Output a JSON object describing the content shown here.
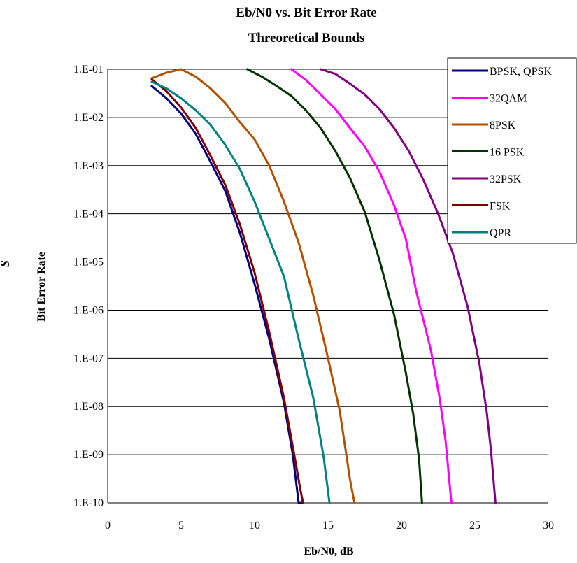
{
  "chart_data": {
    "type": "line",
    "title": "Eb/N0 vs. Bit Error Rate",
    "subtitle": "Threoretical Bounds",
    "xlabel": "Eb/N0, dB",
    "ylabel": "Bit Error Rate",
    "stray_glyph": "S",
    "xlim": [
      0,
      30
    ],
    "ylim": [
      1e-10,
      0.1
    ],
    "y_scale": "log",
    "x_ticks": [
      "0",
      "5",
      "10",
      "15",
      "20",
      "25",
      "30"
    ],
    "y_ticks": [
      "1.E-01",
      "1.E-02",
      "1.E-03",
      "1.E-04",
      "1.E-05",
      "1.E-06",
      "1.E-07",
      "1.E-08",
      "1.E-09",
      "1.E-10"
    ],
    "grid": "horizontal",
    "legend_position": "top-right",
    "series": [
      {
        "name": "BPSK, QPSK",
        "color": "#000080",
        "x": [
          3,
          4,
          5,
          6,
          7,
          8,
          9,
          10,
          11,
          12,
          12.6,
          13.0,
          13.2
        ],
        "y": [
          0.045,
          0.025,
          0.012,
          0.0045,
          0.0012,
          0.0003,
          4e-05,
          3.5e-06,
          2.5e-07,
          1.2e-08,
          1e-09,
          1e-10,
          1e-10
        ]
      },
      {
        "name": "32QAM",
        "color": "#FF00FF",
        "x": [
          12.5,
          13.5,
          14.5,
          15.5,
          16.5,
          17.5,
          18.5,
          19.5,
          20.3,
          21,
          22,
          22.6,
          23,
          23.4,
          23.5
        ],
        "y": [
          0.1,
          0.06,
          0.03,
          0.015,
          0.006,
          0.0025,
          0.00075,
          0.00015,
          3e-05,
          2.5e-06,
          1.5e-07,
          1.5e-08,
          2e-09,
          1e-10,
          1e-10
        ]
      },
      {
        "name": "8PSK",
        "color": "#B35000",
        "x": [
          3,
          4,
          5,
          6,
          7,
          8,
          9,
          10,
          11,
          12,
          13,
          14,
          15,
          15.8,
          16.5,
          16.8
        ],
        "y": [
          0.065,
          0.085,
          0.1,
          0.07,
          0.04,
          0.02,
          0.008,
          0.0035,
          0.001,
          0.00018,
          2.5e-05,
          2e-06,
          1e-07,
          8e-09,
          3e-10,
          1e-10
        ]
      },
      {
        "name": "16 PSK",
        "color": "#003300",
        "x": [
          9.5,
          10.5,
          11.5,
          12.5,
          13.5,
          14.5,
          15.5,
          16.5,
          17.5,
          18.5,
          19.5,
          20.3,
          20.8,
          21.2,
          21.4
        ],
        "y": [
          0.1,
          0.07,
          0.045,
          0.028,
          0.014,
          0.006,
          0.002,
          0.00055,
          0.00011,
          1.1e-05,
          8e-07,
          5e-08,
          7e-09,
          8e-10,
          1e-10
        ]
      },
      {
        "name": "32PSK",
        "color": "#800080",
        "x": [
          14.5,
          15.5,
          16.5,
          17.5,
          18.5,
          19.5,
          20.5,
          21.5,
          22.5,
          23.5,
          24.5,
          25.3,
          25.8,
          26.1,
          26.4
        ],
        "y": [
          0.1,
          0.08,
          0.05,
          0.03,
          0.015,
          0.006,
          0.002,
          0.0005,
          0.0001,
          1.5e-05,
          1.2e-06,
          8e-08,
          8e-09,
          1.2e-09,
          1e-10
        ]
      },
      {
        "name": "FSK",
        "color": "#800000",
        "x": [
          3,
          4,
          5,
          6,
          7,
          8,
          9,
          10,
          11,
          12,
          12.7,
          13.1,
          13.3
        ],
        "y": [
          0.062,
          0.035,
          0.016,
          0.006,
          0.0016,
          0.0004,
          6e-05,
          6e-06,
          3.5e-07,
          1.5e-08,
          1e-09,
          2e-10,
          1e-10
        ]
      },
      {
        "name": "QPR",
        "color": "#008080",
        "x": [
          3,
          4,
          5,
          6,
          7,
          8,
          9,
          10,
          11,
          12,
          13,
          14,
          14.7,
          15.1
        ],
        "y": [
          0.055,
          0.04,
          0.025,
          0.014,
          0.007,
          0.0027,
          0.00085,
          0.00018,
          3e-05,
          5e-06,
          2.5e-07,
          1.5e-08,
          9e-10,
          1e-10
        ]
      }
    ]
  }
}
